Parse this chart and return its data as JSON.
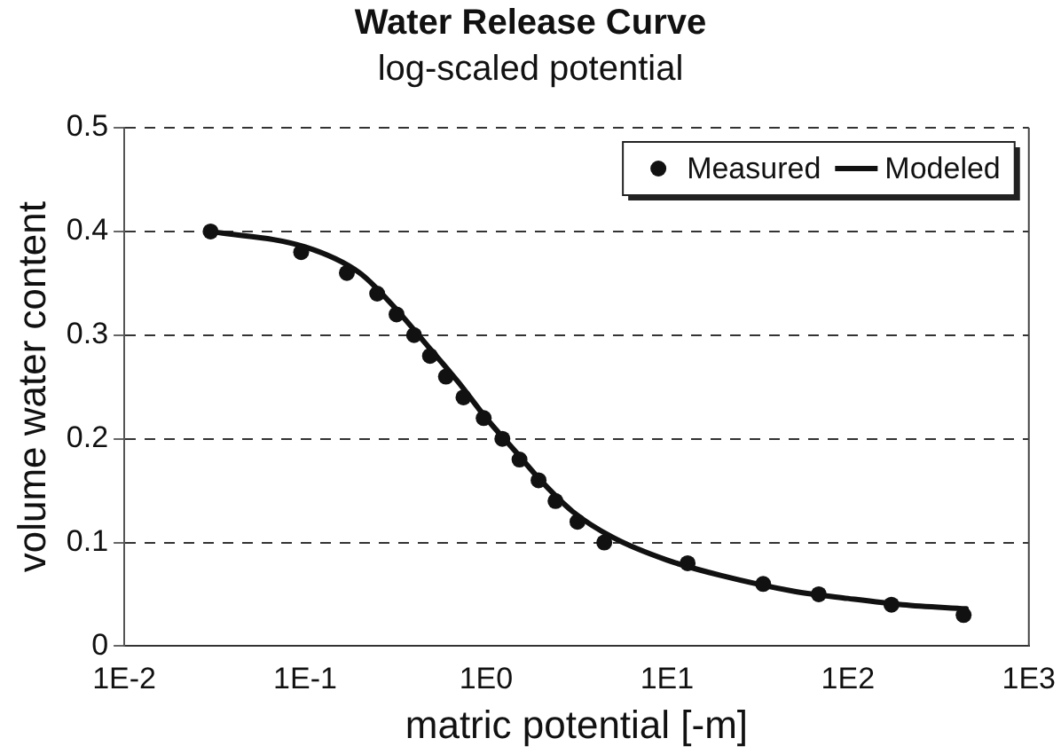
{
  "chart_data": {
    "type": "scatter",
    "title": "Water Release Curve",
    "subtitle": "log-scaled potential",
    "xlabel": "matric potential [-m]",
    "ylabel": "volume water content",
    "log": "x",
    "xlim": [
      0.01,
      1000
    ],
    "xticks": [
      {
        "value": 0.01,
        "label": "1E-2"
      },
      {
        "value": 0.1,
        "label": "1E-1"
      },
      {
        "value": 1,
        "label": "1E0"
      },
      {
        "value": 10,
        "label": "1E1"
      },
      {
        "value": 100,
        "label": "1E2"
      },
      {
        "value": 1000,
        "label": "1E3"
      }
    ],
    "ylim": [
      0,
      0.5
    ],
    "yticks": [
      0,
      0.1,
      0.2,
      0.3,
      0.4,
      0.5
    ],
    "grid": "y",
    "legend": "top right",
    "series": [
      {
        "name": "Measured",
        "marker": "circle",
        "color": "#111111",
        "x": [
          0.03,
          0.095,
          0.17,
          0.25,
          0.32,
          0.4,
          0.49,
          0.6,
          0.75,
          0.97,
          1.23,
          1.53,
          1.95,
          2.42,
          3.2,
          4.5,
          13,
          34,
          69,
          174,
          436
        ],
        "values": [
          0.4,
          0.38,
          0.36,
          0.34,
          0.32,
          0.3,
          0.28,
          0.26,
          0.24,
          0.22,
          0.2,
          0.18,
          0.16,
          0.14,
          0.12,
          0.1,
          0.08,
          0.06,
          0.05,
          0.04,
          0.03
        ]
      },
      {
        "name": "Modeled",
        "type": "line",
        "marker": "none",
        "line_style": "solid",
        "color": "#111111",
        "x": [
          0.03,
          0.1,
          0.2,
          0.3,
          0.5,
          0.7,
          1,
          1.5,
          2,
          3,
          5,
          10,
          20,
          50,
          100,
          200,
          450
        ],
        "values": [
          0.4,
          0.385,
          0.36,
          0.33,
          0.285,
          0.255,
          0.22,
          0.185,
          0.16,
          0.13,
          0.105,
          0.083,
          0.068,
          0.053,
          0.046,
          0.04,
          0.036
        ]
      }
    ]
  }
}
